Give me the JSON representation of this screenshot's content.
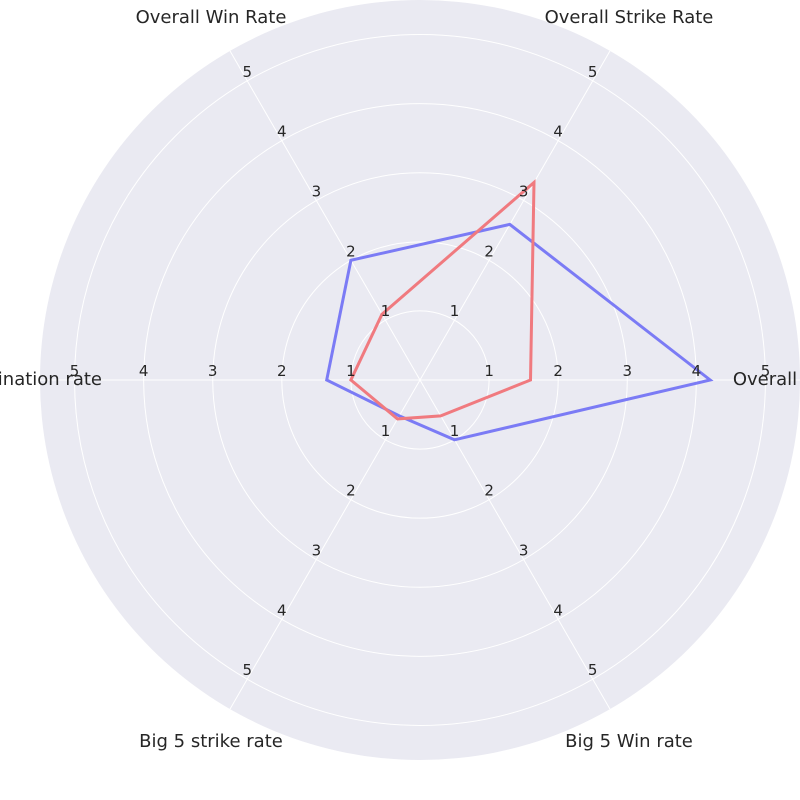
{
  "chart_data": {
    "type": "radar",
    "axes": [
      "Overall",
      "Overall Strike Rate",
      "Overall Win Rate",
      "Domination rate",
      "Big 5 strike rate",
      "Big 5 Win rate"
    ],
    "axis_label_text": [
      "Overall",
      "Overall Strike Rate",
      "Overall Win Rate",
      "nination rate",
      "Big 5 strike rate",
      "Big 5 Win rate"
    ],
    "r_ticks": [
      "1",
      "2",
      "3",
      "4",
      "5"
    ],
    "r_range": [
      0,
      5.5
    ],
    "grid": true,
    "series": [
      {
        "color": "#7b7bf5",
        "values": [
          4.2,
          2.6,
          2.0,
          1.35,
          0.6,
          1.0
        ]
      },
      {
        "color": "#f07a7f",
        "values": [
          1.6,
          3.3,
          1.1,
          1.0,
          0.65,
          0.6
        ]
      }
    ]
  }
}
